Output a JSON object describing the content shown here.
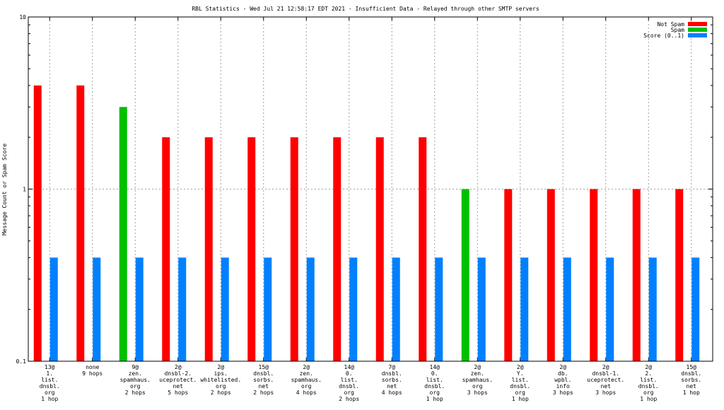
{
  "chart_data": {
    "type": "bar",
    "title": "RBL Statistics - Wed Jul 21 12:58:17 EDT 2021 - Insufficient Data - Relayed through other SMTP servers",
    "ylabel": "Message Count or Spam Score",
    "xlabel": "",
    "yscale": "log",
    "ylim": [
      0.1,
      10
    ],
    "yticks": [
      "0.1",
      "1",
      "10"
    ],
    "grid": true,
    "legend_position": "top-right",
    "categories": [
      [
        "13@",
        "1.",
        "list.",
        "dnsbl.",
        "org",
        "1 hop"
      ],
      [
        "none",
        "9 hops"
      ],
      [
        "9@",
        "zen.",
        "spamhaus.",
        "org",
        "2 hops"
      ],
      [
        "2@",
        "dnsbl-2.",
        "uceprotect.",
        "net",
        "5 hops"
      ],
      [
        "2@",
        "ips.",
        "whitelisted.",
        "org",
        "2 hops"
      ],
      [
        "15@",
        "dnsbl.",
        "sorbs.",
        "net",
        "2 hops"
      ],
      [
        "2@",
        "zen.",
        "spamhaus.",
        "org",
        "4 hops"
      ],
      [
        "14@",
        "0.",
        "list.",
        "dnsbl.",
        "org",
        "2 hops"
      ],
      [
        "7@",
        "dnsbl.",
        "sorbs.",
        "net",
        "4 hops"
      ],
      [
        "14@",
        "0.",
        "list.",
        "dnsbl.",
        "org",
        "1 hop"
      ],
      [
        "2@",
        "zen.",
        "spamhaus.",
        "org",
        "3 hops"
      ],
      [
        "2@",
        "Y.",
        "list.",
        "dnsbl.",
        "org",
        "1 hop"
      ],
      [
        "2@",
        "db.",
        "wpbl.",
        "info",
        "3 hops"
      ],
      [
        "2@",
        "dnsbl-1.",
        "uceprotect.",
        "net",
        "3 hops"
      ],
      [
        "2@",
        "2.",
        "list.",
        "dnsbl.",
        "org",
        "1 hop"
      ],
      [
        "15@",
        "dnsbl.",
        "sorbs.",
        "net",
        "1 hop"
      ]
    ],
    "series": [
      {
        "name": "Not Spam",
        "color": "#ff0000",
        "values": [
          4,
          4,
          null,
          2,
          2,
          2,
          2,
          2,
          2,
          2,
          null,
          1,
          1,
          1,
          1,
          1
        ]
      },
      {
        "name": "Spam",
        "color": "#00c000",
        "values": [
          null,
          null,
          3,
          null,
          null,
          null,
          null,
          null,
          null,
          null,
          1,
          null,
          null,
          null,
          null,
          null
        ]
      },
      {
        "name": "Score (0..1)",
        "color": "#0080ff",
        "values": [
          0.4,
          0.4,
          0.4,
          0.4,
          0.4,
          0.4,
          0.4,
          0.4,
          0.4,
          0.4,
          0.4,
          0.4,
          0.4,
          0.4,
          0.4,
          0.4
        ]
      }
    ]
  }
}
